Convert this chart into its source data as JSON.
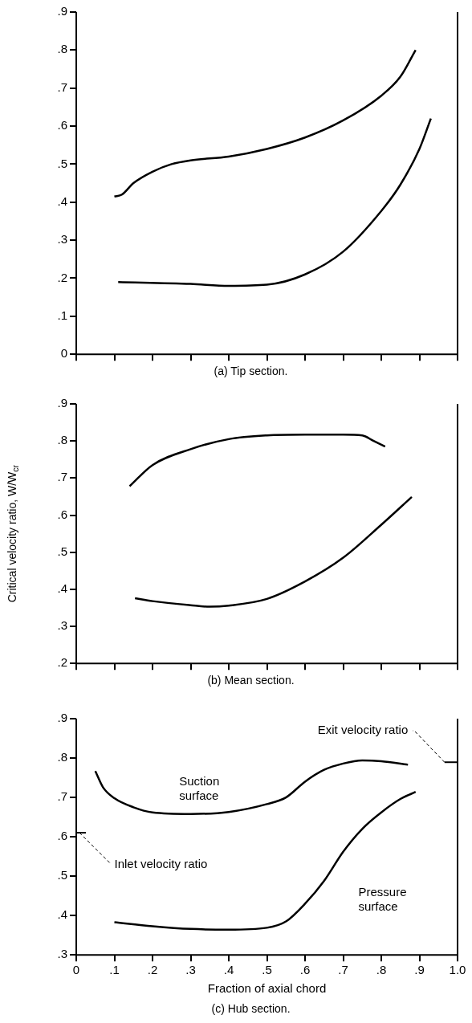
{
  "chart_data": [
    {
      "type": "line",
      "title": "(a) Tip section.",
      "marker": "none",
      "tick_labels": "y",
      "xlim": [
        0,
        1
      ],
      "xticks": [
        {
          "value": 0,
          "label": null
        },
        {
          "value": 0.1,
          "label": null
        },
        {
          "value": 0.2,
          "label": null
        },
        {
          "value": 0.3,
          "label": null
        },
        {
          "value": 0.4,
          "label": null
        },
        {
          "value": 0.5,
          "label": null
        },
        {
          "value": 0.6,
          "label": null
        },
        {
          "value": 0.7,
          "label": null
        },
        {
          "value": 0.8,
          "label": null
        },
        {
          "value": 0.9,
          "label": null
        },
        {
          "value": 1,
          "label": null
        }
      ],
      "ylim": [
        0,
        0.9
      ],
      "yticks": [
        0,
        {
          "value": 0.1,
          "label": ".1"
        },
        {
          "value": 0.2,
          "label": ".2"
        },
        {
          "value": 0.3,
          "label": ".3"
        },
        {
          "value": 0.4,
          "label": ".4"
        },
        {
          "value": 0.5,
          "label": ".5"
        },
        {
          "value": 0.6,
          "label": ".6"
        },
        {
          "value": 0.7,
          "label": ".7"
        },
        {
          "value": 0.8,
          "label": ".8"
        },
        {
          "value": 0.9,
          "label": ".9"
        }
      ],
      "series": [
        {
          "color": "#000000",
          "x": [
            0.1,
            0.12,
            0.15,
            0.2,
            0.25,
            0.3,
            0.4,
            0.5,
            0.6,
            0.7,
            0.8,
            0.85,
            0.89
          ],
          "values": [
            0.415,
            0.42,
            0.45,
            0.48,
            0.5,
            0.51,
            0.52,
            0.54,
            0.57,
            0.615,
            0.68,
            0.73,
            0.8
          ]
        },
        {
          "color": "#000000",
          "x": [
            0.11,
            0.3,
            0.4,
            0.5,
            0.6,
            0.7,
            0.8,
            0.85,
            0.9,
            0.93
          ],
          "values": [
            0.19,
            0.185,
            0.18,
            0.183,
            0.21,
            0.27,
            0.377,
            0.446,
            0.54,
            0.62
          ]
        }
      ]
    },
    {
      "type": "line",
      "title": "(b) Mean section.",
      "ylabel": "Critical velocity ratio, W/W$_{cr}$",
      "marker": "none",
      "tick_labels": "y",
      "xlim": [
        0,
        1
      ],
      "xticks": [
        {
          "value": 0,
          "label": null
        },
        {
          "value": 0.1,
          "label": null
        },
        {
          "value": 0.2,
          "label": null
        },
        {
          "value": 0.3,
          "label": null
        },
        {
          "value": 0.4,
          "label": null
        },
        {
          "value": 0.5,
          "label": null
        },
        {
          "value": 0.6,
          "label": null
        },
        {
          "value": 0.7,
          "label": null
        },
        {
          "value": 0.8,
          "label": null
        },
        {
          "value": 0.9,
          "label": null
        },
        {
          "value": 1,
          "label": null
        }
      ],
      "ylim": [
        0.2,
        0.9
      ],
      "yticks": [
        {
          "value": 0.2,
          "label": ".2"
        },
        {
          "value": 0.3,
          "label": ".3"
        },
        {
          "value": 0.4,
          "label": ".4"
        },
        {
          "value": 0.5,
          "label": ".5"
        },
        {
          "value": 0.6,
          "label": ".6"
        },
        {
          "value": 0.7,
          "label": ".7"
        },
        {
          "value": 0.8,
          "label": ".8"
        },
        {
          "value": 0.9,
          "label": ".9"
        }
      ],
      "series": [
        {
          "color": "#000000",
          "x": [
            0.14,
            0.2,
            0.3,
            0.4,
            0.5,
            0.6,
            0.7,
            0.75,
            0.78,
            0.81
          ],
          "values": [
            0.678,
            0.735,
            0.778,
            0.805,
            0.815,
            0.817,
            0.817,
            0.815,
            0.8,
            0.785
          ]
        },
        {
          "color": "#000000",
          "x": [
            0.154,
            0.2,
            0.3,
            0.35,
            0.4,
            0.5,
            0.6,
            0.7,
            0.8,
            0.88
          ],
          "values": [
            0.376,
            0.368,
            0.357,
            0.353,
            0.356,
            0.374,
            0.421,
            0.485,
            0.574,
            0.649
          ]
        }
      ]
    },
    {
      "type": "line",
      "title": "(c) Hub section.",
      "xlabel": "Fraction of axial chord",
      "marker": "none",
      "xlim": [
        0,
        1
      ],
      "xticks": [
        {
          "value": 0,
          "label": "0"
        },
        {
          "value": 0.1,
          "label": ".1"
        },
        {
          "value": 0.2,
          "label": ".2"
        },
        {
          "value": 0.3,
          "label": ".3"
        },
        {
          "value": 0.4,
          "label": ".4"
        },
        {
          "value": 0.5,
          "label": ".5"
        },
        {
          "value": 0.6,
          "label": ".6"
        },
        {
          "value": 0.7,
          "label": ".7"
        },
        {
          "value": 0.8,
          "label": ".8"
        },
        {
          "value": 0.9,
          "label": ".9"
        },
        {
          "value": 1,
          "label": "1.0"
        }
      ],
      "ylim": [
        0.3,
        0.9
      ],
      "yticks": [
        {
          "value": 0.3,
          "label": ".3"
        },
        {
          "value": 0.4,
          "label": ".4"
        },
        {
          "value": 0.5,
          "label": ".5"
        },
        {
          "value": 0.6,
          "label": ".6"
        },
        {
          "value": 0.7,
          "label": ".7"
        },
        {
          "value": 0.8,
          "label": ".8"
        },
        {
          "value": 0.9,
          "label": ".9"
        }
      ],
      "series": [
        {
          "color": "#000000",
          "x": [
            0.05,
            0.07,
            0.1,
            0.15,
            0.2,
            0.3,
            0.4,
            0.5,
            0.55,
            0.6,
            0.65,
            0.7,
            0.75,
            0.8,
            0.87
          ],
          "values": [
            0.767,
            0.726,
            0.698,
            0.675,
            0.662,
            0.658,
            0.663,
            0.683,
            0.7,
            0.74,
            0.77,
            0.786,
            0.794,
            0.792,
            0.783
          ]
        },
        {
          "color": "#000000",
          "x": [
            0.1,
            0.2,
            0.3,
            0.4,
            0.5,
            0.55,
            0.6,
            0.65,
            0.7,
            0.75,
            0.8,
            0.85,
            0.89
          ],
          "values": [
            0.383,
            0.373,
            0.366,
            0.364,
            0.369,
            0.385,
            0.43,
            0.488,
            0.562,
            0.62,
            0.662,
            0.696,
            0.714
          ]
        }
      ],
      "annotations": [
        "Suction surface",
        "Pressure surface",
        "Inlet velocity ratio",
        "Exit velocity ratio"
      ]
    }
  ]
}
